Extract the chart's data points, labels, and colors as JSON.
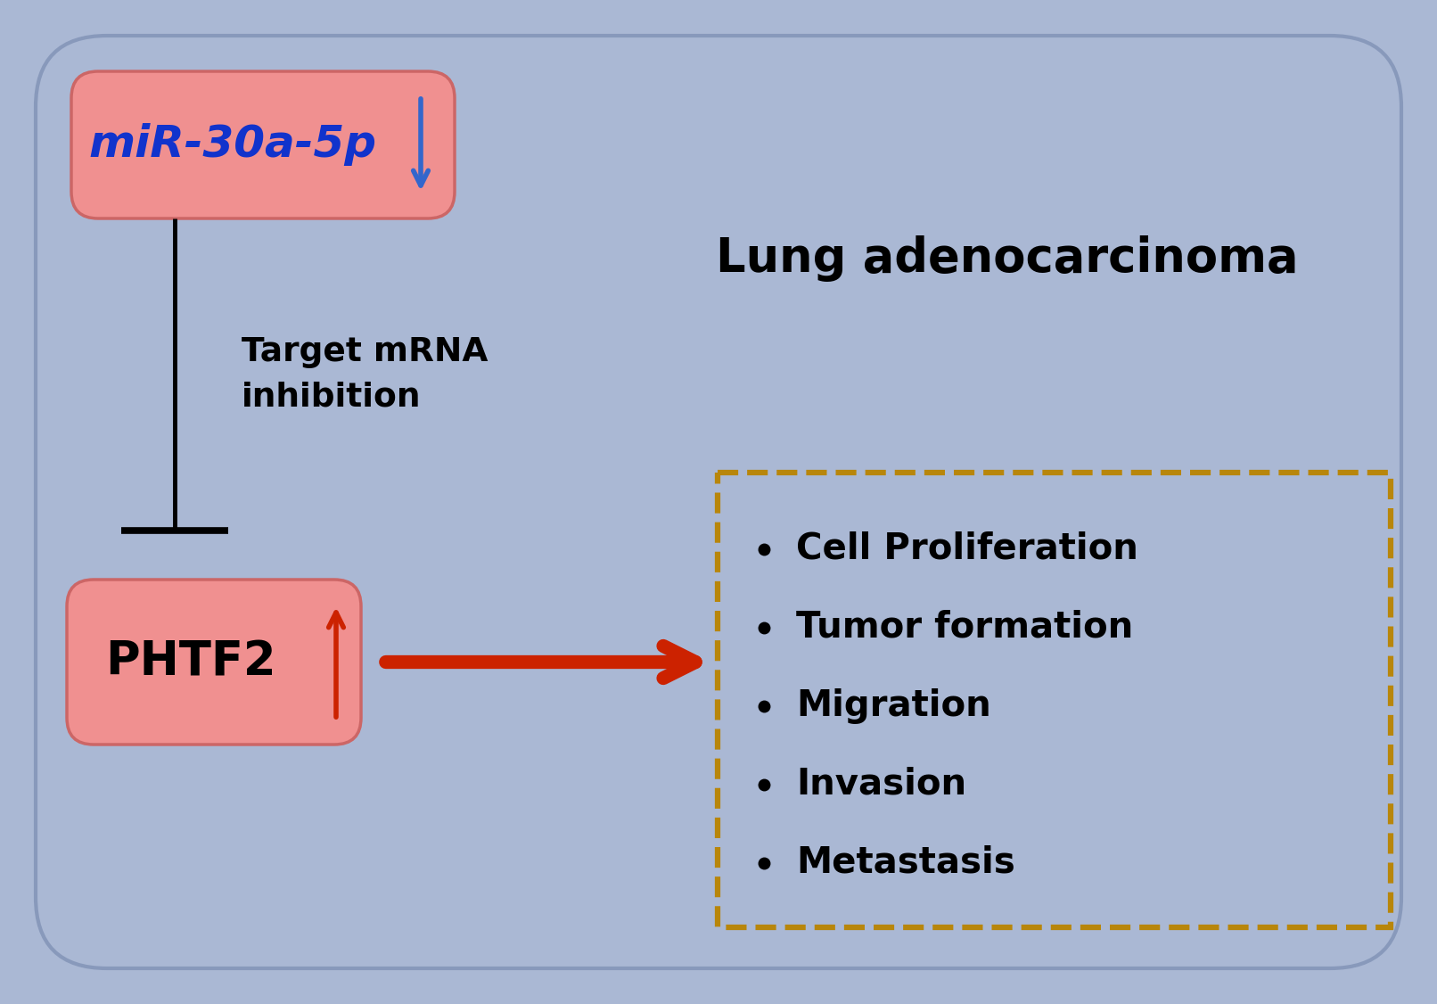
{
  "bg_color": "#aab8d4",
  "outer_box_edge": "#8899bb",
  "mir_text": "miR-30a-5p",
  "phtf2_text": "PHTF2",
  "lung_title": "Lung adenocarcinoma",
  "inhibition_label": "Target mRNA\ninhibition",
  "bullet_items": [
    "Cell Proliferation",
    "Tumor formation",
    "Migration",
    "Invasion",
    "Metastasis"
  ],
  "dashed_box_color": "#b8860b",
  "arrow_down_color": "#3366cc",
  "arrow_up_color": "#cc2200",
  "arrow_right_color": "#cc2200",
  "mir_text_color": "#1133cc",
  "phtf2_text_color": "#000000",
  "bullet_text_color": "#000000",
  "inhibition_text_color": "#000000",
  "lung_text_color": "#000000",
  "box_face_color": "#f09090",
  "box_edge_color": "#cc6666"
}
